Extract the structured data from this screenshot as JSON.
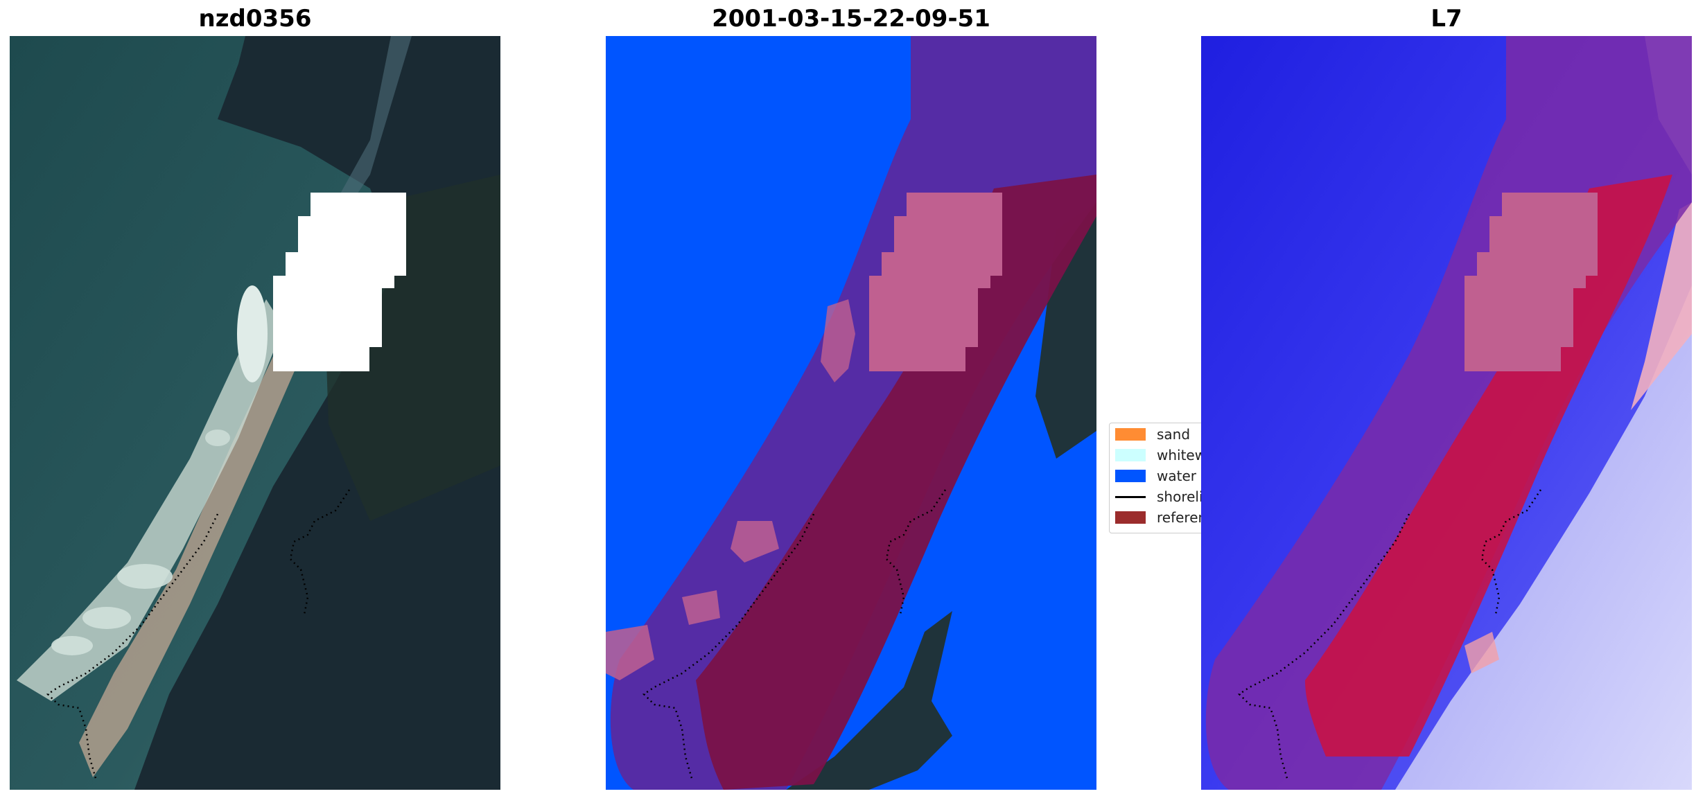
{
  "panels": [
    {
      "title": "nzd0356"
    },
    {
      "title": "2001-03-15-22-09-51"
    },
    {
      "title": "L7"
    }
  ],
  "legend": {
    "items": [
      {
        "label": "sand",
        "color": "#ff8c33",
        "kind": "patch"
      },
      {
        "label": "whitewater",
        "color": "#ccffff",
        "kind": "patch"
      },
      {
        "label": "water",
        "color": "#0055ff",
        "kind": "patch"
      },
      {
        "label": "shoreline",
        "color": "#000000",
        "kind": "line"
      },
      {
        "label": "reference",
        "color": "#9b2c2c",
        "kind": "patch"
      }
    ]
  },
  "colors": {
    "water_class": "#0055ff",
    "buffer_overlay": "#5a2aa0",
    "cloud_mask": "#ffffff",
    "reference_overlay": "#7a1248",
    "masked_overlay": "#c06090"
  }
}
